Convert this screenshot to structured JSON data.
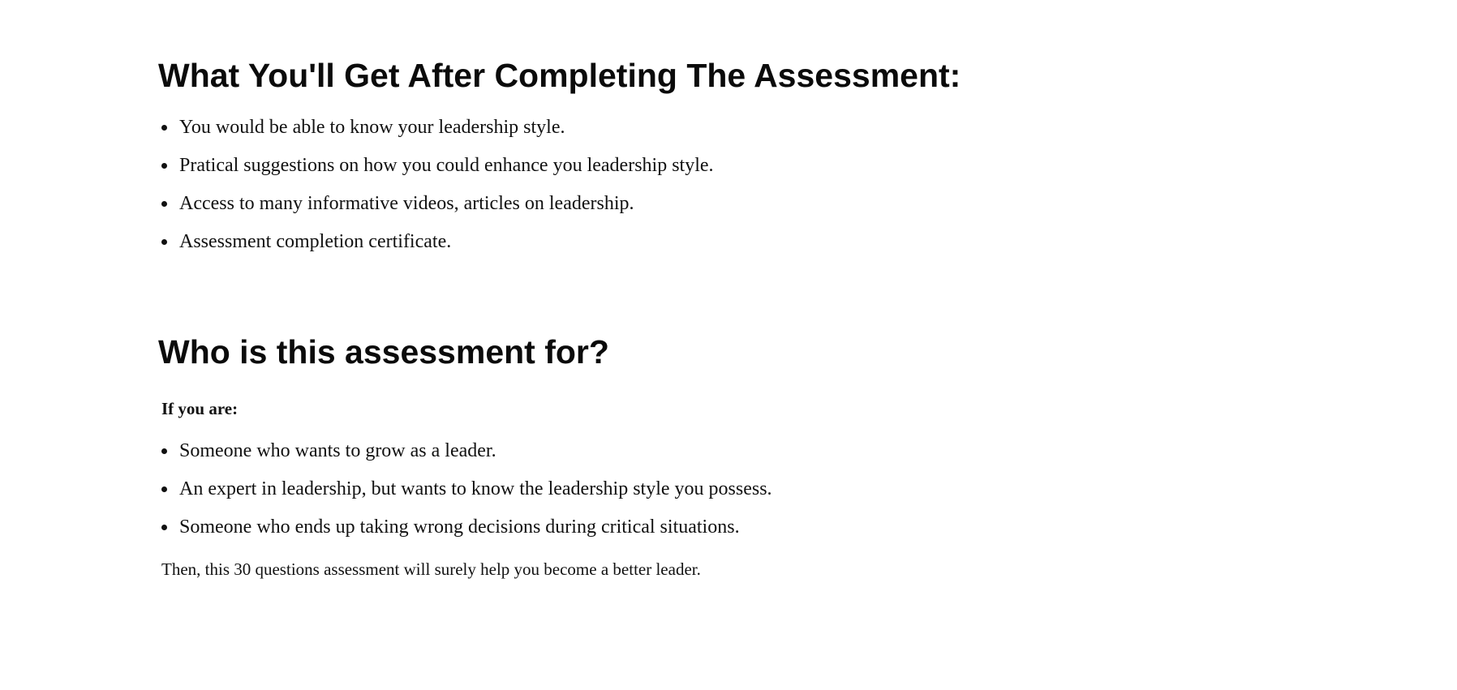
{
  "benefits_section": {
    "heading": "What You'll Get After Completing The Assessment:",
    "items": [
      "You would be able to know your leadership style.",
      "Pratical suggestions on how you could enhance you leadership style.",
      "Access to many informative videos, articles on leadership.",
      "Assessment completion certificate."
    ]
  },
  "audience_section": {
    "heading": "Who is this assessment for?",
    "lead": "If you are:",
    "items": [
      "Someone who wants to grow as a leader.",
      "An expert in leadership, but wants to know the leadership style you possess.",
      "Someone who ends up taking wrong decisions during critical situations."
    ],
    "closing": "Then, this 30 questions assessment will surely help you become a better leader."
  }
}
